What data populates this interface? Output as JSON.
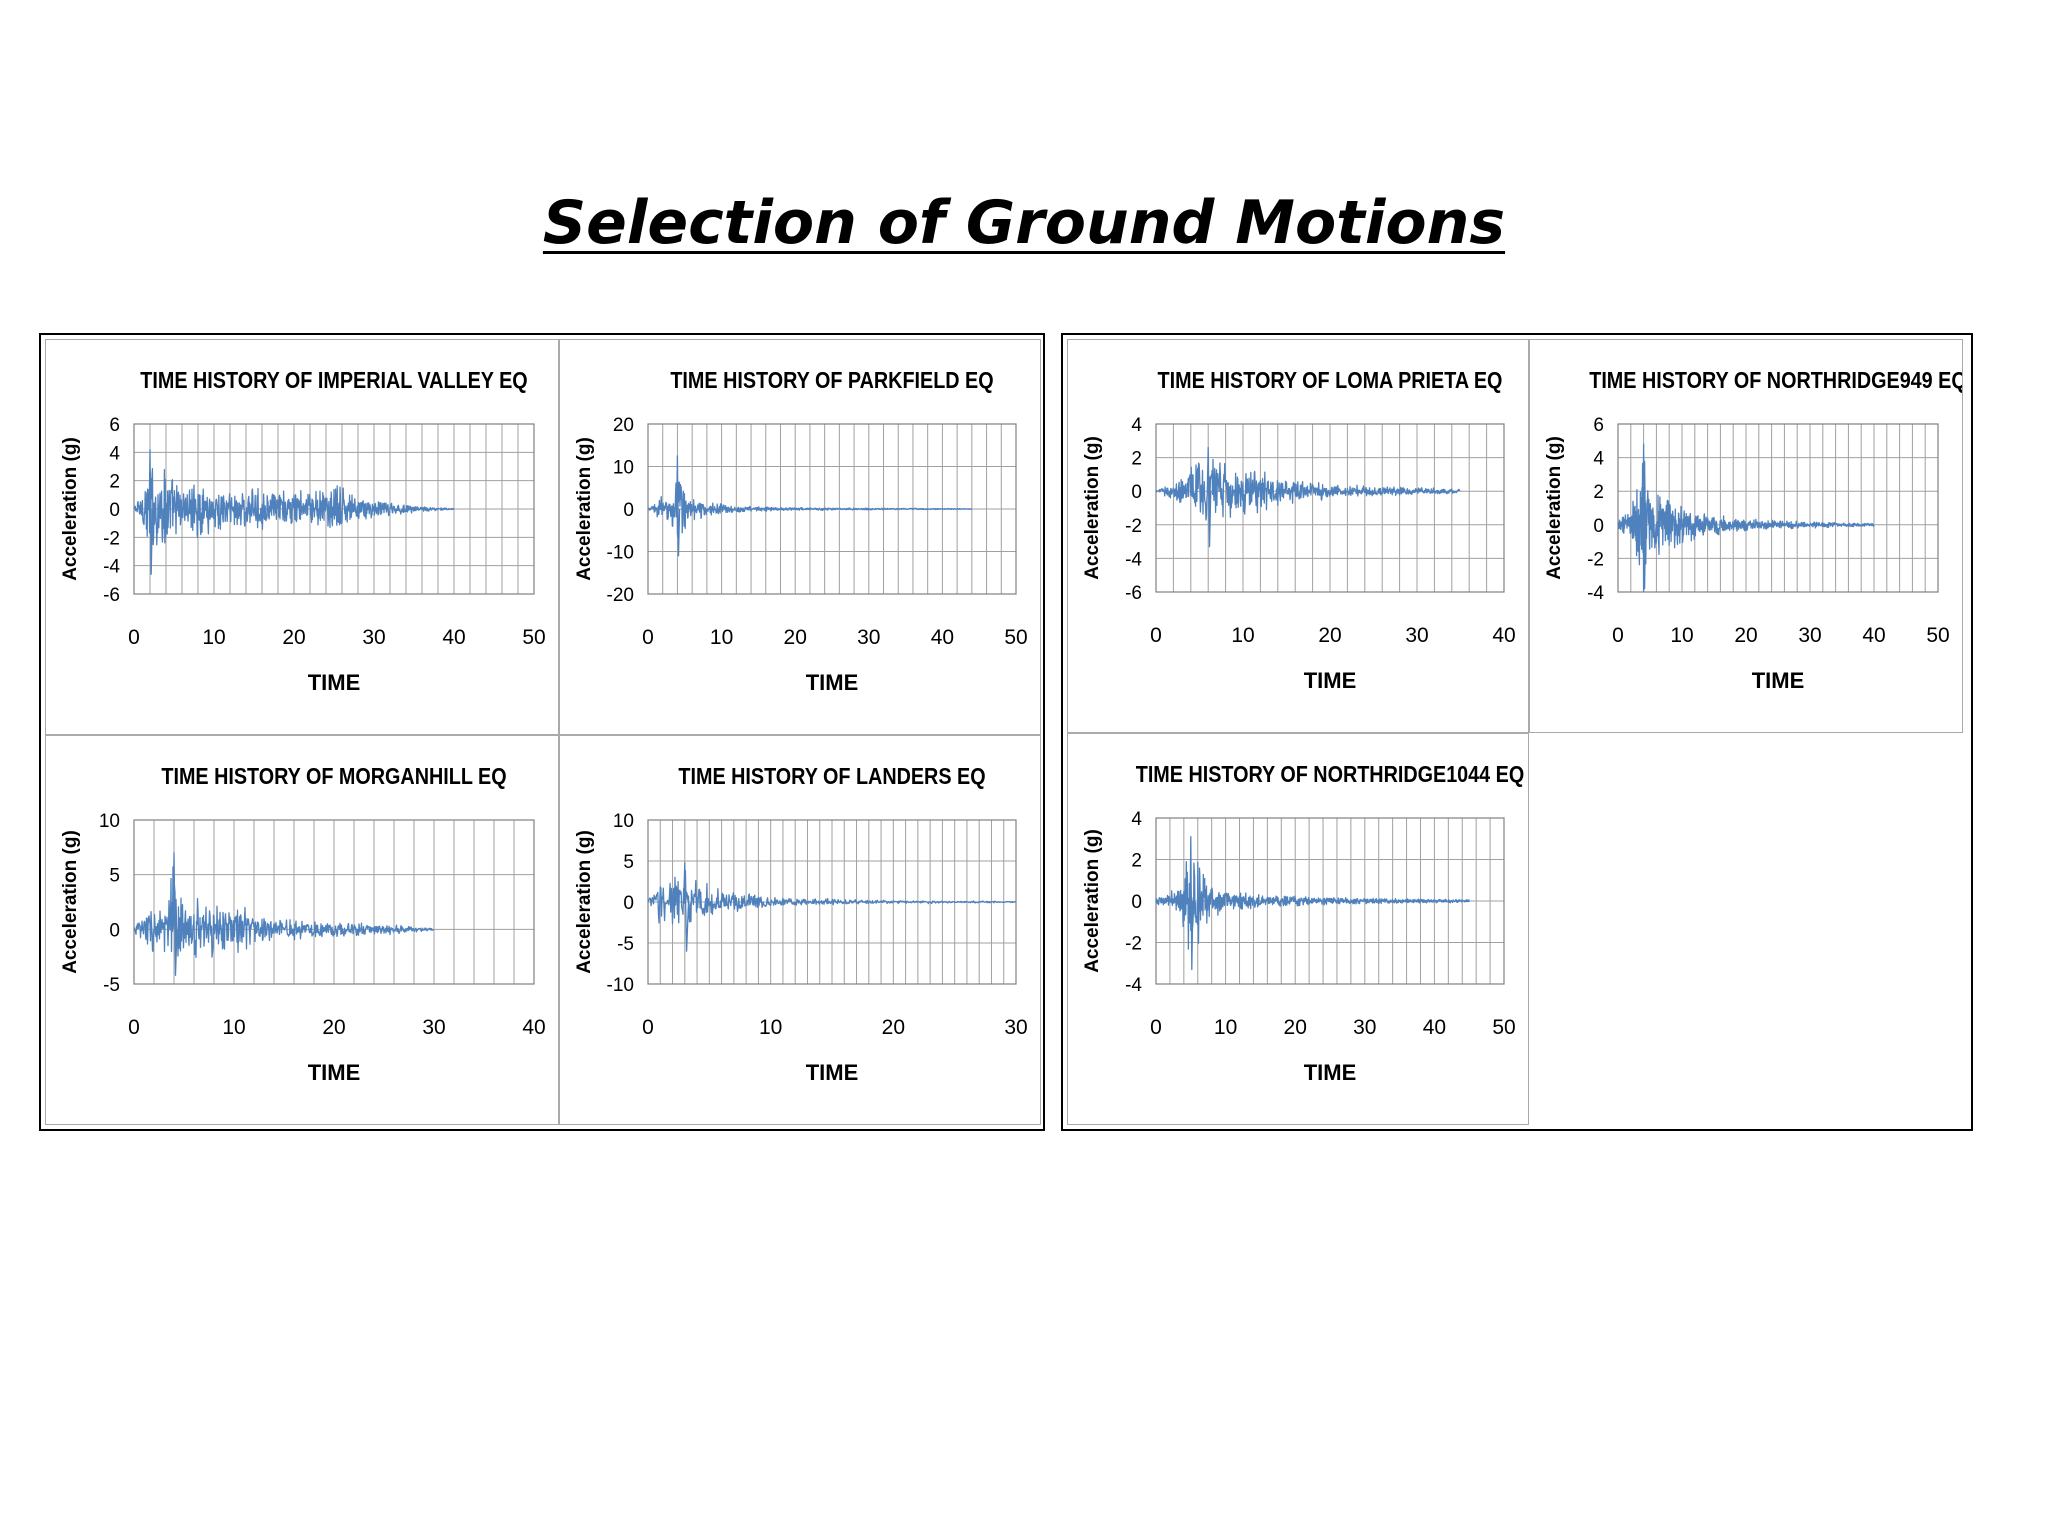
{
  "slide": {
    "title": "Selection of Ground Motions"
  },
  "chart_data": [
    {
      "type": "line",
      "title": "TIME HISTORY OF IMPERIAL VALLEY EQ",
      "xlabel": "TIME",
      "ylabel": "Acceleration (g)",
      "xlim": [
        0,
        50
      ],
      "ylim": [
        -6,
        6
      ],
      "xticks": [
        "0",
        "10",
        "20",
        "30",
        "40",
        "50"
      ],
      "yticks": [
        "6",
        "4",
        "2",
        "0",
        "-2",
        "-4",
        "-6"
      ],
      "grid": true,
      "color": "#4f81bd",
      "series": [
        {
          "envelope": [
            [
              0,
              0.3
            ],
            [
              1,
              1.5
            ],
            [
              2,
              4.2
            ],
            [
              3,
              3.5
            ],
            [
              4,
              3.6
            ],
            [
              5,
              2.2
            ],
            [
              6,
              2.0
            ],
            [
              7,
              1.8
            ],
            [
              8,
              2.2
            ],
            [
              10,
              1.7
            ],
            [
              12,
              1.5
            ],
            [
              15,
              1.6
            ],
            [
              18,
              1.4
            ],
            [
              21,
              1.6
            ],
            [
              24,
              1.5
            ],
            [
              26,
              2.0
            ],
            [
              27,
              1.2
            ],
            [
              30,
              0.7
            ],
            [
              33,
              0.5
            ],
            [
              35,
              0.3
            ],
            [
              37,
              0.15
            ],
            [
              40,
              0.05
            ]
          ],
          "duration": 40,
          "peak_neg": -4.6
        }
      ]
    },
    {
      "type": "line",
      "title": "TIME HISTORY OF PARKFIELD EQ",
      "xlabel": "TIME",
      "ylabel": "Acceleration (g)",
      "xlim": [
        0,
        50
      ],
      "ylim": [
        -20,
        20
      ],
      "xticks": [
        "0",
        "10",
        "20",
        "30",
        "40",
        "50"
      ],
      "yticks": [
        "20",
        "10",
        "0",
        "-10",
        "-20"
      ],
      "grid": true,
      "color": "#4f81bd",
      "series": [
        {
          "envelope": [
            [
              0,
              0.3
            ],
            [
              1,
              1.5
            ],
            [
              2,
              4.0
            ],
            [
              3,
              3.0
            ],
            [
              4,
              12.5
            ],
            [
              5,
              5.0
            ],
            [
              6,
              3.0
            ],
            [
              8,
              1.8
            ],
            [
              10,
              1.2
            ],
            [
              13,
              0.8
            ],
            [
              16,
              0.6
            ],
            [
              20,
              0.4
            ],
            [
              25,
              0.3
            ],
            [
              30,
              0.25
            ],
            [
              35,
              0.2
            ],
            [
              40,
              0.15
            ],
            [
              44,
              0.1
            ]
          ],
          "duration": 44,
          "peak_neg": -11
        }
      ]
    },
    {
      "type": "line",
      "title": "TIME HISTORY OF MORGANHILL EQ",
      "xlabel": "TIME",
      "ylabel": "Acceleration (g)",
      "xlim": [
        0,
        40
      ],
      "ylim": [
        -5,
        10
      ],
      "xticks": [
        "0",
        "10",
        "20",
        "30",
        "40"
      ],
      "yticks": [
        "10",
        "5",
        "0",
        "-5"
      ],
      "grid": true,
      "color": "#4f81bd",
      "series": [
        {
          "envelope": [
            [
              0,
              0.3
            ],
            [
              1,
              2.0
            ],
            [
              2,
              2.5
            ],
            [
              3,
              2.2
            ],
            [
              4,
              7.0
            ],
            [
              5,
              3.0
            ],
            [
              6,
              3.0
            ],
            [
              7,
              3.2
            ],
            [
              8,
              3.0
            ],
            [
              10,
              2.5
            ],
            [
              12,
              1.8
            ],
            [
              14,
              1.2
            ],
            [
              17,
              0.9
            ],
            [
              20,
              0.8
            ],
            [
              23,
              0.6
            ],
            [
              26,
              0.5
            ],
            [
              28,
              0.3
            ],
            [
              30,
              0.1
            ]
          ],
          "duration": 30,
          "peak_neg": -4.2
        }
      ]
    },
    {
      "type": "line",
      "title": "TIME HISTORY OF LANDERS EQ",
      "xlabel": "TIME",
      "ylabel": "Acceleration (g)",
      "xlim": [
        0,
        30
      ],
      "ylim": [
        -10,
        10
      ],
      "xticks": [
        "0",
        "10",
        "20",
        "30"
      ],
      "yticks": [
        "10",
        "5",
        "0",
        "-5",
        "-10"
      ],
      "grid": true,
      "color": "#4f81bd",
      "series": [
        {
          "envelope": [
            [
              0,
              0.5
            ],
            [
              1,
              3.0
            ],
            [
              2,
              4.0
            ],
            [
              3,
              4.8
            ],
            [
              4,
              3.5
            ],
            [
              5,
              2.5
            ],
            [
              6,
              1.8
            ],
            [
              8,
              1.2
            ],
            [
              10,
              0.8
            ],
            [
              13,
              0.5
            ],
            [
              16,
              0.35
            ],
            [
              20,
              0.25
            ],
            [
              25,
              0.15
            ],
            [
              30,
              0.1
            ]
          ],
          "duration": 30,
          "peak_neg": -6
        }
      ]
    },
    {
      "type": "line",
      "title": "TIME HISTORY OF LOMA PRIETA EQ",
      "xlabel": "TIME",
      "ylabel": "Acceleration (g)",
      "xlim": [
        0,
        40
      ],
      "ylim": [
        -6,
        4
      ],
      "xticks": [
        "0",
        "10",
        "20",
        "30",
        "40"
      ],
      "yticks": [
        "4",
        "2",
        "0",
        "-2",
        "-4",
        "-6"
      ],
      "grid": true,
      "color": "#4f81bd",
      "series": [
        {
          "envelope": [
            [
              0,
              0.1
            ],
            [
              2,
              0.5
            ],
            [
              4,
              1.8
            ],
            [
              6,
              2.6
            ],
            [
              7,
              2.2
            ],
            [
              8,
              1.8
            ],
            [
              10,
              1.6
            ],
            [
              13,
              1.3
            ],
            [
              15,
              0.9
            ],
            [
              18,
              0.6
            ],
            [
              20,
              0.5
            ],
            [
              23,
              0.4
            ],
            [
              26,
              0.3
            ],
            [
              30,
              0.25
            ],
            [
              33,
              0.2
            ],
            [
              35,
              0.15
            ]
          ],
          "duration": 35,
          "peak_neg": -3.3
        }
      ]
    },
    {
      "type": "line",
      "title": "TIME HISTORY OF NORTHRIDGE949 EQ",
      "xlabel": "TIME",
      "ylabel": "Acceleration (g)",
      "xlim": [
        0,
        50
      ],
      "ylim": [
        -4,
        6
      ],
      "xticks": [
        "0",
        "10",
        "20",
        "30",
        "40",
        "50"
      ],
      "yticks": [
        "6",
        "4",
        "2",
        "0",
        "-2",
        "-4"
      ],
      "grid": true,
      "color": "#4f81bd",
      "series": [
        {
          "envelope": [
            [
              0,
              0.2
            ],
            [
              2,
              1.2
            ],
            [
              3,
              2.5
            ],
            [
              4,
              4.8
            ],
            [
              5,
              2.8
            ],
            [
              7,
              2.2
            ],
            [
              9,
              1.6
            ],
            [
              11,
              1.2
            ],
            [
              13,
              0.8
            ],
            [
              16,
              0.6
            ],
            [
              20,
              0.4
            ],
            [
              25,
              0.3
            ],
            [
              30,
              0.2
            ],
            [
              35,
              0.15
            ],
            [
              40,
              0.1
            ]
          ],
          "duration": 40,
          "peak_neg": -3.8
        }
      ]
    },
    {
      "type": "line",
      "title": "TIME HISTORY OF NORTHRIDGE1044 EQ",
      "xlabel": "TIME",
      "ylabel": "Acceleration (g)",
      "xlim": [
        0,
        50
      ],
      "ylim": [
        -4,
        4
      ],
      "xticks": [
        "0",
        "10",
        "20",
        "30",
        "40",
        "50"
      ],
      "yticks": [
        "4",
        "2",
        "0",
        "-2",
        "-4"
      ],
      "grid": true,
      "color": "#4f81bd",
      "series": [
        {
          "envelope": [
            [
              0,
              0.2
            ],
            [
              2,
              0.4
            ],
            [
              4,
              1.6
            ],
            [
              5,
              3.1
            ],
            [
              6,
              2.4
            ],
            [
              7,
              1.6
            ],
            [
              8,
              0.9
            ],
            [
              10,
              0.6
            ],
            [
              13,
              0.45
            ],
            [
              16,
              0.35
            ],
            [
              20,
              0.3
            ],
            [
              25,
              0.2
            ],
            [
              30,
              0.15
            ],
            [
              35,
              0.12
            ],
            [
              40,
              0.1
            ],
            [
              45,
              0.08
            ]
          ],
          "duration": 45,
          "peak_neg": -3.3
        }
      ]
    }
  ]
}
